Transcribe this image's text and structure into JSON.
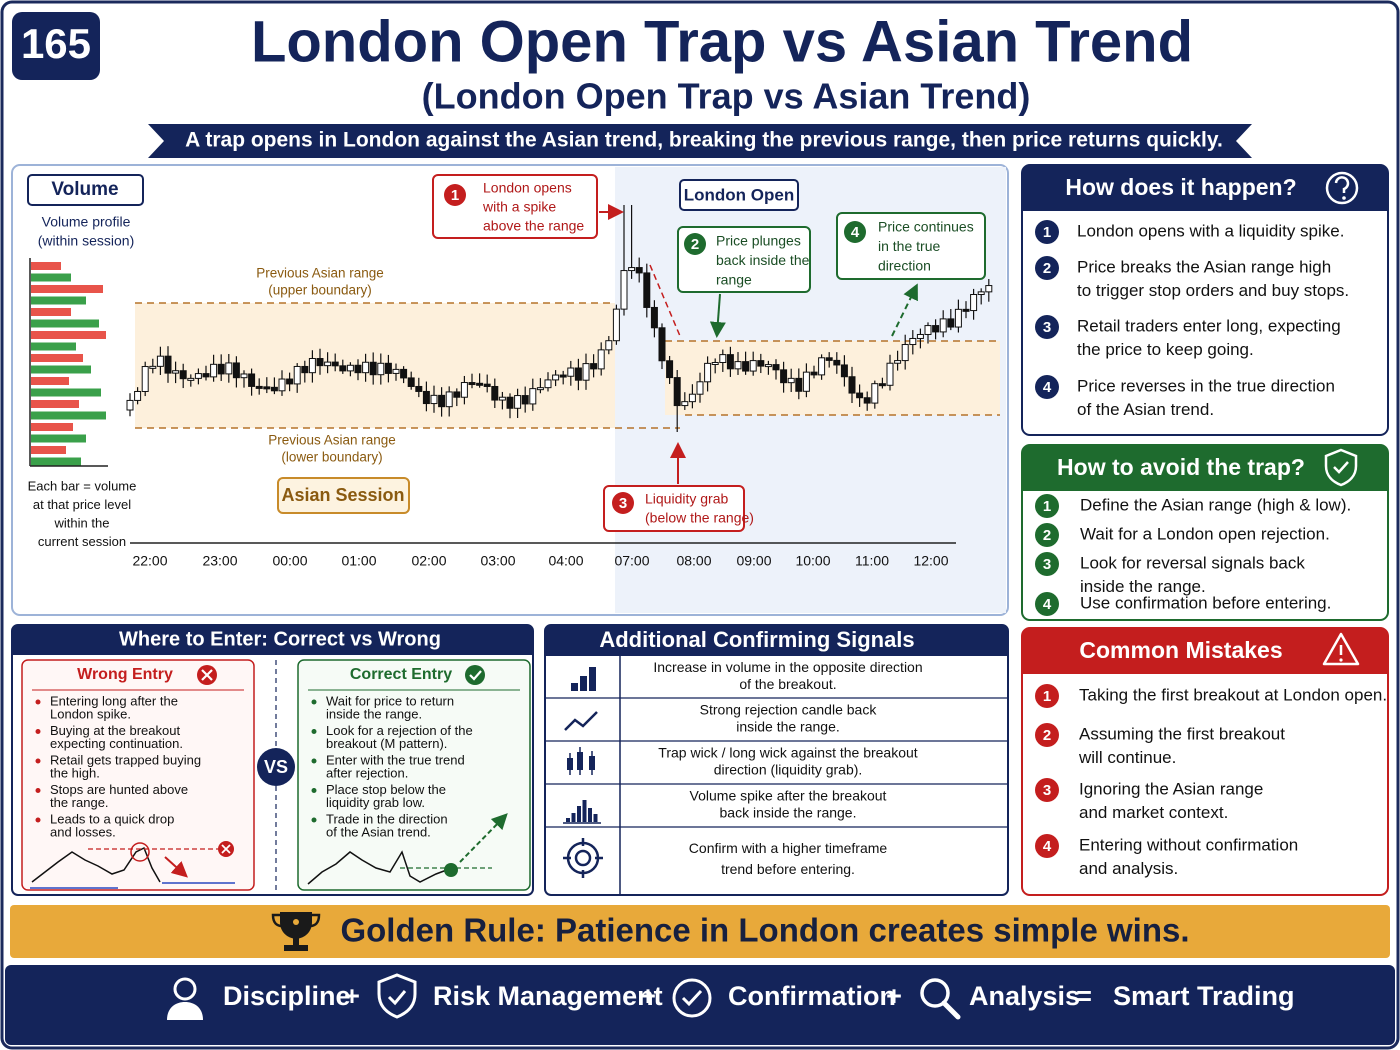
{
  "badge": "165",
  "header": {
    "title": "London Open Trap vs Asian Trend",
    "subtitle": "(London Open Trap vs Asian Trend)",
    "banner": "A trap opens in London against the Asian trend, breaking the previous range, then price returns quickly."
  },
  "chart": {
    "volume_label": "Volume",
    "volume_caption": [
      "Volume profile",
      "(within session)"
    ],
    "volume_note": [
      "Each bar = volume",
      "at that price level",
      "within the",
      "current session"
    ],
    "upper_label": [
      "Previous Asian range",
      "(upper boundary)"
    ],
    "lower_label": [
      "Previous Asian range",
      "(lower boundary)"
    ],
    "asian_session": "Asian Session",
    "london_open": "London Open",
    "callouts": [
      {
        "number": "1",
        "lines": [
          "London opens",
          "with a spike",
          "above the range"
        ]
      },
      {
        "number": "2",
        "lines": [
          "Price plunges",
          "back inside the",
          "range"
        ]
      },
      {
        "number": "3",
        "lines": [
          "Liquidity grab",
          "(below the range)"
        ]
      },
      {
        "number": "4",
        "lines": [
          "Price continues",
          "in the true",
          "direction"
        ]
      }
    ],
    "times": [
      "22:00",
      "23:00",
      "00:00",
      "01:00",
      "02:00",
      "03:00",
      "04:00",
      "07:00",
      "08:00",
      "09:00",
      "10:00",
      "11:00",
      "12:00"
    ]
  },
  "how": {
    "title": "How does it happen?",
    "items": [
      {
        "number": "1",
        "lines": [
          "London opens with a liquidity spike."
        ]
      },
      {
        "number": "2",
        "lines": [
          "Price breaks the Asian range high",
          "to trigger stop orders and buy stops."
        ]
      },
      {
        "number": "3",
        "lines": [
          "Retail traders enter long, expecting",
          "the price to keep going."
        ]
      },
      {
        "number": "4",
        "lines": [
          "Price reverses in the true direction",
          "of the Asian trend."
        ]
      }
    ]
  },
  "avoid": {
    "title": "How to avoid the trap?",
    "items": [
      {
        "number": "1",
        "lines": [
          "Define the Asian range (high & low)."
        ]
      },
      {
        "number": "2",
        "lines": [
          "Wait for a London open rejection."
        ]
      },
      {
        "number": "3",
        "lines": [
          "Look for reversal signals back",
          "inside the range."
        ]
      },
      {
        "number": "4",
        "lines": [
          "Use confirmation before entering."
        ]
      }
    ]
  },
  "mistakes": {
    "title": "Common Mistakes",
    "items": [
      {
        "number": "1",
        "lines": [
          "Taking the first breakout at London open."
        ]
      },
      {
        "number": "2",
        "lines": [
          "Assuming the first breakout",
          "will continue."
        ]
      },
      {
        "number": "3",
        "lines": [
          "Ignoring the Asian range",
          "and market context."
        ]
      },
      {
        "number": "4",
        "lines": [
          "Entering without confirmation",
          "and analysis."
        ]
      }
    ]
  },
  "enter": {
    "title": "Where to Enter: Correct vs Wrong",
    "vs": "VS",
    "wrong": {
      "title": "Wrong Entry",
      "items": [
        [
          "Entering long after the",
          "London spike."
        ],
        [
          "Buying at the breakout",
          "expecting continuation."
        ],
        [
          "Retail gets trapped buying",
          "the high."
        ],
        [
          "Stops are hunted above",
          "the range."
        ],
        [
          "Leads to a quick drop",
          "and losses."
        ]
      ]
    },
    "correct": {
      "title": "Correct Entry",
      "items": [
        [
          "Wait for price to return",
          "inside the range."
        ],
        [
          "Look for a rejection of the",
          "breakout (M pattern)."
        ],
        [
          "Enter with the true trend",
          "after rejection."
        ],
        [
          "Place stop below the",
          "liquidity grab low."
        ],
        [
          "Trade in the direction",
          "of the Asian trend."
        ]
      ]
    }
  },
  "signals": {
    "title": "Additional Confirming Signals",
    "rows": [
      [
        "Increase in volume in the opposite direction",
        "of the breakout."
      ],
      [
        "Strong rejection candle back",
        "inside the range."
      ],
      [
        "Trap wick / long wick against the breakout",
        "direction (liquidity grab)."
      ],
      [
        "Volume spike after the breakout",
        "back inside the range."
      ],
      [
        "Confirm with a higher timeframe",
        "trend before entering."
      ]
    ]
  },
  "golden_rule": "Golden Rule: Patience in London creates simple wins.",
  "footer": {
    "items": [
      "Discipline",
      "Risk Management",
      "Confirmation",
      "Analysis",
      "Smart Trading"
    ],
    "operators": [
      "+",
      "+",
      "+",
      "="
    ]
  }
}
